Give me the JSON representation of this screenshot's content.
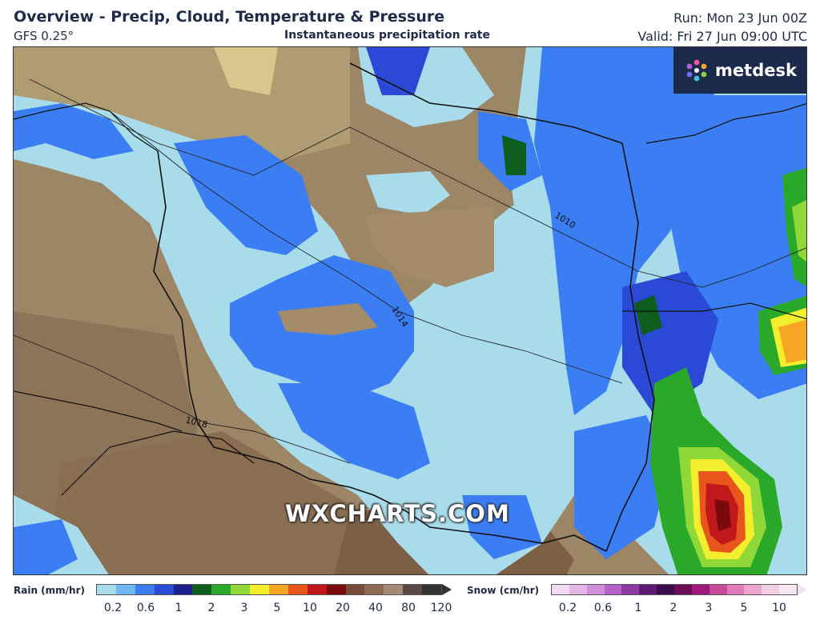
{
  "header": {
    "title": "Overview - Precip, Cloud, Temperature & Pressure",
    "model": "GFS 0.25°",
    "subtitle": "Instantaneous precipitation rate",
    "run": "Run: Mon 23 Jun 00Z",
    "valid": "Valid: Fri 27 Jun 09:00 UTC"
  },
  "logo": {
    "text": "metdesk"
  },
  "watermark": "WXCHARTS.COM",
  "isobars": [
    "1010",
    "1014",
    "1018"
  ],
  "legend": {
    "rain": {
      "label": "Rain (mm/hr)",
      "ticks": [
        "0.2",
        "0.6",
        "1",
        "2",
        "3",
        "5",
        "10",
        "20",
        "40",
        "80",
        "120"
      ],
      "colors": [
        "#a8dcea",
        "#6fb6f5",
        "#3b7df2",
        "#2a49d6",
        "#1d1f8f",
        "#0e5e1e",
        "#2aa82a",
        "#8fd837",
        "#f3ef2c",
        "#f6a622",
        "#e8561c",
        "#c2171b",
        "#7a0a0c",
        "#7a4a3a",
        "#8e6a55",
        "#a58a78",
        "#5a4a44",
        "#333333"
      ]
    },
    "snow": {
      "label": "Snow (cm/hr)",
      "ticks": [
        "0.2",
        "0.6",
        "1",
        "2",
        "3",
        "5",
        "10"
      ],
      "colors": [
        "#f3dcf3",
        "#e3b6e8",
        "#cf8fdb",
        "#b563c8",
        "#8e3aa6",
        "#5e1a74",
        "#3a0c4a",
        "#6e0c5a",
        "#a0187a",
        "#c8489c",
        "#e07ab8",
        "#eaa6cf",
        "#f3cfe4",
        "#f8e8f2"
      ]
    }
  },
  "colors": {
    "land": "#a48c6a",
    "cloud_light": "#a8dcea",
    "rain_blue": "#3b7df2",
    "rain_dark": "#2a49d6"
  }
}
